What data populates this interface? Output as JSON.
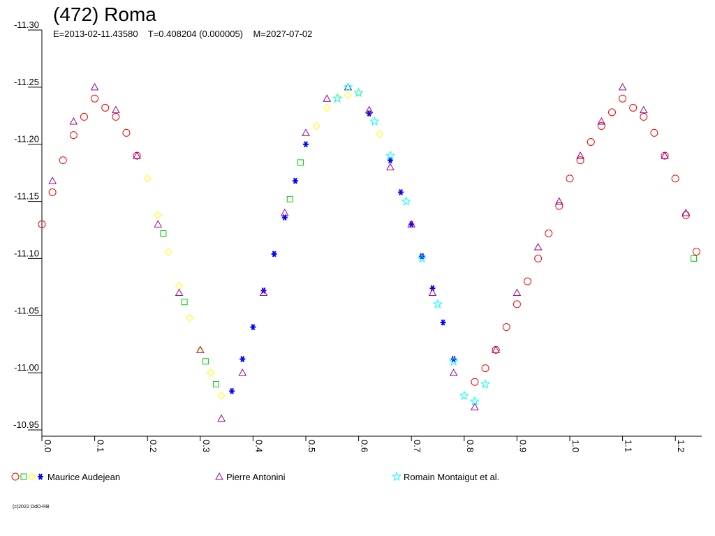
{
  "chart_data": {
    "type": "scatter",
    "title": "(472) Roma",
    "subtitle": "E=2013-02-11.43580    T=0.408204 (0.000005)    M=2027-07-02",
    "copyright": "(c)2022 OdO-RB",
    "xlim": [
      0,
      1.25
    ],
    "xticks": [
      {
        "value": 0,
        "label": "0.0"
      },
      0.1,
      0.2,
      0.3,
      0.4,
      0.5,
      0.6,
      0.7,
      0.8,
      0.9,
      {
        "value": 1,
        "label": "1.0"
      },
      1.1,
      1.2
    ],
    "ylim": [
      -11.3,
      -10.95
    ],
    "y_reversed": true,
    "yticks": [
      {
        "value": -11.3,
        "label": "-11.30"
      },
      -11.25,
      {
        "value": -11.2,
        "label": "-11.20"
      },
      -11.15,
      {
        "value": -11.1,
        "label": "-11.10"
      },
      -11.05,
      {
        "value": -11,
        "label": "-11.00"
      },
      -10.95
    ],
    "series": [
      {
        "name": "Maurice Audejean",
        "sets": [
          {
            "color": "#ff0000",
            "marker": "circle",
            "x": [
              0,
              0.02,
              0.04,
              0.06,
              0.08,
              0.1,
              0.12,
              0.14,
              0.16,
              0.18,
              0.82,
              0.84,
              0.86,
              0.88,
              0.9,
              0.92,
              0.94,
              0.96,
              0.98,
              1,
              1.02,
              1.04,
              1.06,
              1.08,
              1.1,
              1.12,
              1.14,
              1.16,
              1.18,
              1.2,
              1.22,
              1.24
            ],
            "values": [
              -11.13,
              -11.158,
              -11.186,
              -11.208,
              -11.224,
              -11.24,
              -11.232,
              -11.224,
              -11.21,
              -11.19,
              -10.992,
              -11.004,
              -11.02,
              -11.04,
              -11.06,
              -11.08,
              -11.1,
              -11.122,
              -11.146,
              -11.17,
              -11.186,
              -11.202,
              -11.216,
              -11.228,
              -11.24,
              -11.232,
              -11.224,
              -11.21,
              -11.19,
              -11.17,
              -11.138,
              -11.106
            ]
          },
          {
            "color": "#00cc00",
            "marker": "square",
            "x": [
              0.23,
              0.27,
              0.31,
              0.33,
              0.47,
              0.49,
              1.235
            ],
            "values": [
              -11.122,
              -11.062,
              -11.01,
              -10.99,
              -11.152,
              -11.184,
              -11.1
            ]
          },
          {
            "color": "#ffff00",
            "marker": "diamond",
            "x": [
              0.2,
              0.22,
              0.24,
              0.26,
              0.28,
              0.3,
              0.32,
              0.34,
              0.52,
              0.54,
              0.56,
              0.58,
              0.6,
              0.62,
              0.64
            ],
            "values": [
              -11.17,
              -11.138,
              -11.106,
              -11.076,
              -11.048,
              -11.02,
              -11,
              -10.98,
              -11.216,
              -11.232,
              -11.241,
              -11.243,
              -11.245,
              -11.227,
              -11.209
            ]
          },
          {
            "color": "#0000ff",
            "marker": "asterisk",
            "x": [
              0.36,
              0.38,
              0.4,
              0.42,
              0.44,
              0.46,
              0.48,
              0.5,
              0.62,
              0.66,
              0.68,
              0.7,
              0.72,
              0.74,
              0.76,
              0.78
            ],
            "values": [
              -10.984,
              -11.012,
              -11.04,
              -11.072,
              -11.104,
              -11.136,
              -11.168,
              -11.2,
              -11.227,
              -11.186,
              -11.158,
              -11.13,
              -11.102,
              -11.074,
              -11.044,
              -11.012
            ]
          }
        ]
      },
      {
        "name": "Pierre Antonini",
        "sets": [
          {
            "color": "#990099",
            "marker": "triangle",
            "x": [
              0.02,
              0.06,
              0.1,
              0.14,
              0.18,
              0.22,
              0.26,
              0.3,
              0.34,
              0.38,
              0.42,
              0.46,
              0.5,
              0.54,
              0.58,
              0.62,
              0.66,
              0.7,
              0.74,
              0.78,
              0.82,
              0.86,
              0.9,
              0.94,
              0.98,
              1.02,
              1.06,
              1.1,
              1.14,
              1.18,
              1.22
            ],
            "values": [
              -11.168,
              -11.22,
              -11.25,
              -11.23,
              -11.19,
              -11.13,
              -11.07,
              -11.02,
              -10.96,
              -11,
              -11.07,
              -11.14,
              -11.21,
              -11.24,
              -11.25,
              -11.23,
              -11.18,
              -11.13,
              -11.07,
              -11,
              -10.97,
              -11.02,
              -11.07,
              -11.11,
              -11.15,
              -11.19,
              -11.22,
              -11.25,
              -11.23,
              -11.19,
              -11.14
            ]
          }
        ]
      },
      {
        "name": "Romain Montaigut et al.",
        "sets": [
          {
            "color": "#00ffff",
            "marker": "star",
            "x": [
              0.56,
              0.58,
              0.6,
              0.63,
              0.66,
              0.69,
              0.72,
              0.75,
              0.78,
              0.8,
              0.82,
              0.84
            ],
            "values": [
              -11.24,
              -11.25,
              -11.245,
              -11.22,
              -11.19,
              -11.15,
              -11.1,
              -11.06,
              -11.01,
              -10.98,
              -10.975,
              -10.99
            ]
          }
        ]
      }
    ]
  }
}
